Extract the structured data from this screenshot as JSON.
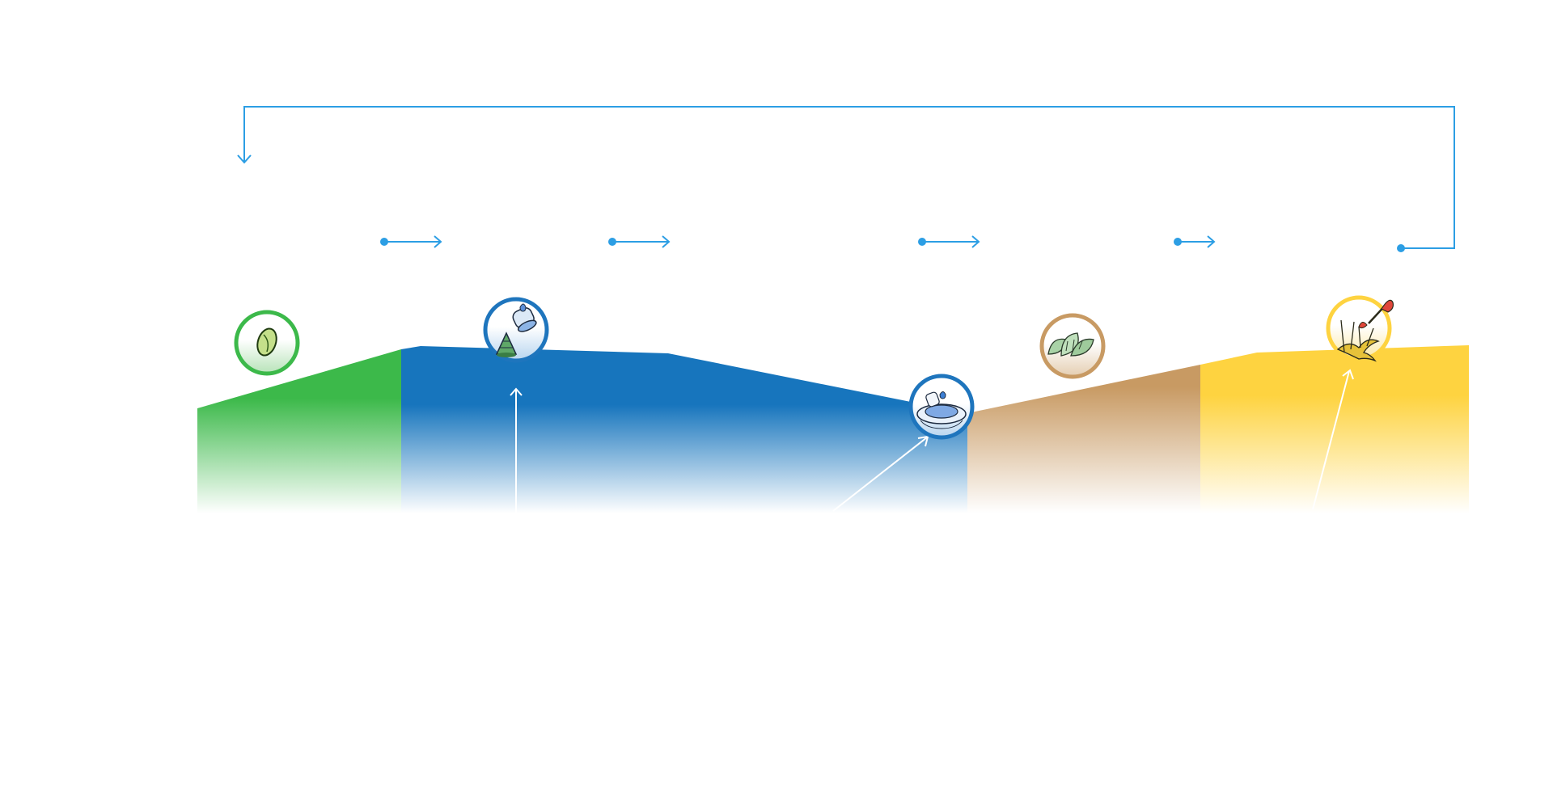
{
  "diagram": {
    "stages": [
      {
        "id": "seed",
        "icon": "seed-icon",
        "color": "#3cb94a"
      },
      {
        "id": "water",
        "icon": "water-drops-seedling-icon",
        "color": "#1e75bd"
      },
      {
        "id": "basin",
        "icon": "water-basin-icon",
        "color": "#1e75bd"
      },
      {
        "id": "soil",
        "icon": "soil-leaves-icon",
        "color": "#c89a63"
      },
      {
        "id": "harvest",
        "icon": "harvest-plant-icon",
        "color": "#fed340"
      }
    ],
    "colors": {
      "arrow": "#2c9ee4",
      "green": "#3cb94a",
      "blue": "#1775bd",
      "brown": "#c89a63",
      "yellow": "#fed340",
      "background": "#ffffff"
    }
  }
}
